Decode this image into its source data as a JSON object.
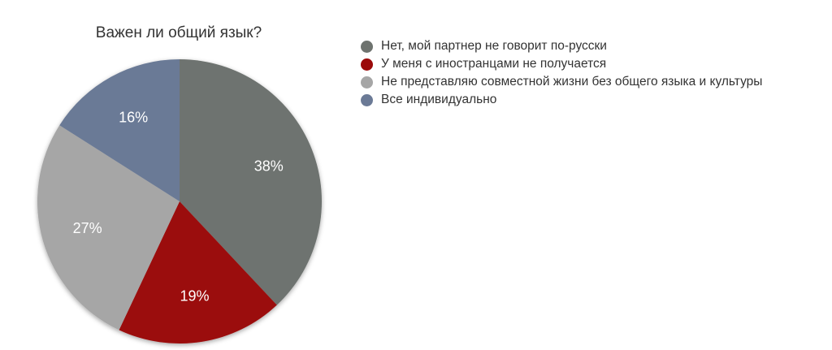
{
  "chart_data": {
    "type": "pie",
    "title": "Важен ли общий язык?",
    "legend_position": "right",
    "slices": [
      {
        "label": "Нет, мой партнер не говорит по-русски",
        "value": 38,
        "value_label": "38%",
        "color": "#6e736f"
      },
      {
        "label": "У меня с иностранцами не получается",
        "value": 19,
        "value_label": "19%",
        "color": "#9b0a0a"
      },
      {
        "label": "Не представляю совместной жизни без общего языка и культуры",
        "value": 27,
        "value_label": "27%",
        "color": "#a6a6a6"
      },
      {
        "label": "Все индивидуально",
        "value": 16,
        "value_label": "16%",
        "color": "#6b7a96"
      }
    ]
  }
}
